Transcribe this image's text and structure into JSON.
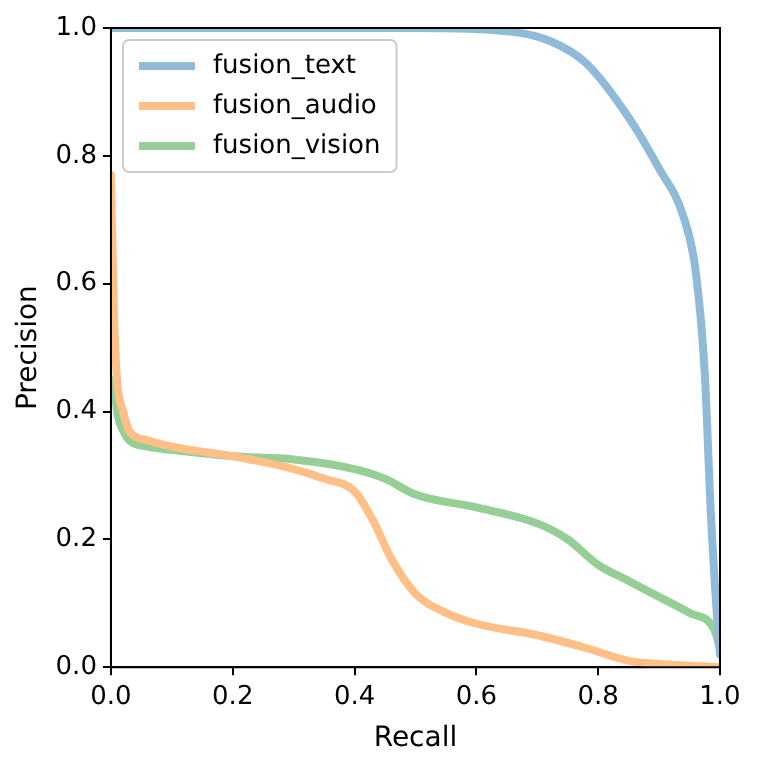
{
  "chart_data": {
    "type": "line",
    "xlabel": "Recall",
    "ylabel": "Precision",
    "xlim": [
      0,
      1
    ],
    "ylim": [
      0,
      1
    ],
    "xticks": [
      {
        "value": 0,
        "label": "0.0"
      },
      {
        "value": 0.2,
        "label": "0.2"
      },
      {
        "value": 0.4,
        "label": "0.4"
      },
      {
        "value": 0.6,
        "label": "0.6"
      },
      {
        "value": 0.8,
        "label": "0.8"
      },
      {
        "value": 1,
        "label": "1.0"
      }
    ],
    "yticks": [
      {
        "value": 0,
        "label": "0.0"
      },
      {
        "value": 0.2,
        "label": "0.2"
      },
      {
        "value": 0.4,
        "label": "0.4"
      },
      {
        "value": 0.6,
        "label": "0.6"
      },
      {
        "value": 0.8,
        "label": "0.8"
      },
      {
        "value": 1,
        "label": "1.0"
      }
    ],
    "grid": false,
    "legend": "top left",
    "marker": "none",
    "line_style": "solid",
    "series": [
      {
        "name": "fusion_text",
        "color": "#8fbbd9",
        "x": [
          0,
          0.3,
          0.5,
          0.65,
          0.72,
          0.78,
          0.85,
          0.9,
          0.94,
          0.96,
          0.975,
          0.985,
          0.995,
          1
        ],
        "values": [
          1,
          1,
          1,
          0.995,
          0.98,
          0.945,
          0.86,
          0.78,
          0.705,
          0.62,
          0.46,
          0.24,
          0.08,
          0.02
        ]
      },
      {
        "name": "fusion_audio",
        "color": "#ffbf86",
        "x": [
          0,
          0.005,
          0.01,
          0.02,
          0.03,
          0.06,
          0.1,
          0.2,
          0.3,
          0.35,
          0.4,
          0.43,
          0.46,
          0.5,
          0.55,
          0.6,
          0.7,
          0.78,
          0.85,
          0.9,
          1
        ],
        "values": [
          0.77,
          0.55,
          0.45,
          0.4,
          0.37,
          0.355,
          0.345,
          0.33,
          0.31,
          0.295,
          0.275,
          0.23,
          0.17,
          0.115,
          0.085,
          0.068,
          0.05,
          0.03,
          0.01,
          0.005,
          0
        ]
      },
      {
        "name": "fusion_vision",
        "color": "#95cf95",
        "x": [
          0.005,
          0.01,
          0.02,
          0.03,
          0.06,
          0.1,
          0.2,
          0.3,
          0.4,
          0.45,
          0.5,
          0.6,
          0.7,
          0.75,
          0.8,
          0.85,
          0.9,
          0.95,
          0.99,
          1
        ],
        "values": [
          0.45,
          0.4,
          0.37,
          0.355,
          0.345,
          0.34,
          0.33,
          0.325,
          0.31,
          0.295,
          0.27,
          0.25,
          0.225,
          0.2,
          0.16,
          0.135,
          0.11,
          0.085,
          0.06,
          0.03
        ]
      }
    ]
  }
}
